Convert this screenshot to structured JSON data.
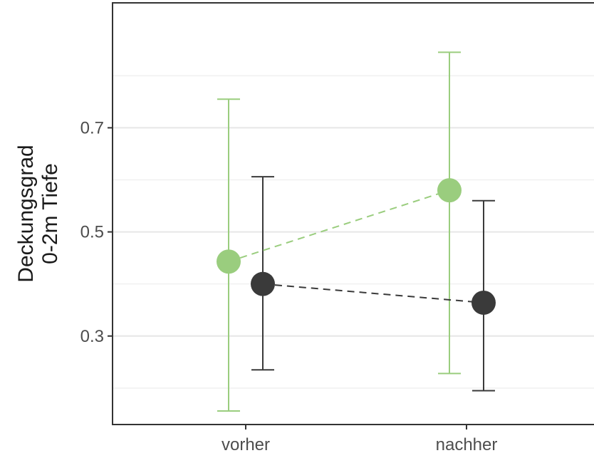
{
  "chart_data": {
    "type": "scatter",
    "ylabel": [
      "Deckungsgrad",
      "0-2m Tiefe"
    ],
    "xlabel": "",
    "categories": [
      "vorher",
      "nachher"
    ],
    "ylim": [
      0.13,
      0.94
    ],
    "yticks": [
      0.3,
      0.5,
      0.7
    ],
    "ytick_labels": [
      "0.3",
      "0.5",
      "0.7"
    ],
    "grid": true,
    "legend": "none",
    "series": [
      {
        "color": "#9ACD7E",
        "values": [
          0.443,
          0.58
        ],
        "lower": [
          0.156,
          0.228
        ],
        "upper": [
          0.755,
          0.845
        ]
      },
      {
        "color": "#3a3a3a",
        "values": [
          0.4,
          0.364
        ],
        "lower": [
          0.235,
          0.195
        ],
        "upper": [
          0.606,
          0.56
        ]
      }
    ]
  }
}
